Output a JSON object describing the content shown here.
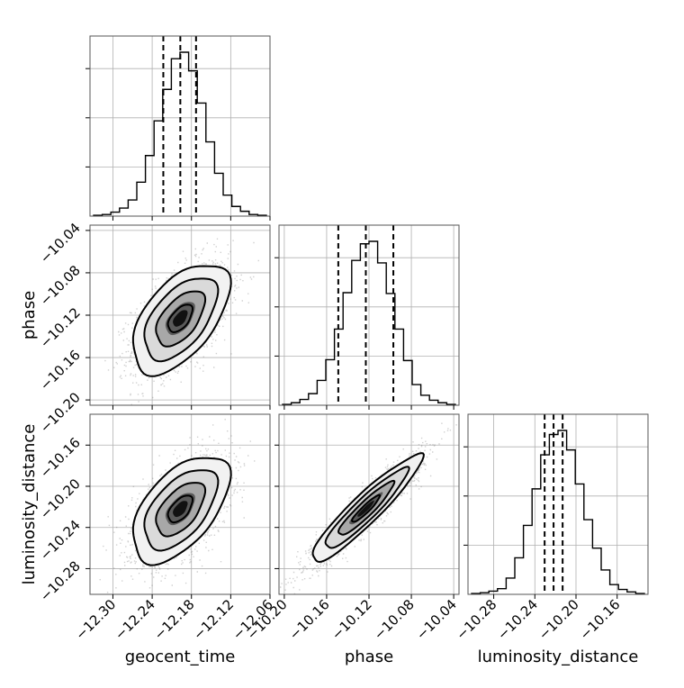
{
  "chart_data": {
    "type": "corner",
    "parameters": [
      "geocent_time",
      "phase",
      "luminosity_distance"
    ],
    "grid": true,
    "axes": {
      "geocent_time": {
        "label": "geocent_time",
        "range": [
          -12.335,
          -12.06
        ],
        "ticks": [
          -12.3,
          -12.24,
          -12.18,
          -12.12,
          -12.06
        ],
        "tick_labels": [
          "−12.30",
          "−12.24",
          "−12.18",
          "−12.12",
          "−12.06"
        ]
      },
      "phase": {
        "label": "phase",
        "range": [
          -10.205,
          -10.035
        ],
        "ticks": [
          -10.2,
          -10.16,
          -10.12,
          -10.08,
          -10.04
        ],
        "tick_labels": [
          "−10.20",
          "−10.16",
          "−10.12",
          "−10.08",
          "−10.04"
        ]
      },
      "luminosity_distance": {
        "label": "luminosity_distance",
        "range": [
          -10.305,
          -10.13
        ],
        "ticks": [
          -10.28,
          -10.24,
          -10.2,
          -10.16
        ],
        "tick_labels": [
          "−10.28",
          "−10.24",
          "−10.20",
          "−10.16"
        ]
      }
    },
    "y_axes": {
      "phase": {
        "ticks": [
          -10.2,
          -10.16,
          -10.12,
          -10.08,
          -10.04
        ],
        "tick_labels": [
          "−10.20",
          "−10.16",
          "−10.12",
          "−10.08",
          "−10.04"
        ]
      },
      "luminosity_distance": {
        "ticks": [
          -10.28,
          -10.24,
          -10.2,
          -10.16
        ],
        "tick_labels": [
          "−10.28",
          "−10.24",
          "−10.20",
          "−10.16"
        ]
      }
    },
    "histograms": [
      {
        "parameter": "geocent_time",
        "quantiles": [
          -12.223,
          -12.197,
          -12.173
        ],
        "counts": [
          1,
          2,
          5,
          10,
          20,
          42,
          75,
          118,
          157,
          195,
          203,
          180,
          140,
          92,
          53,
          26,
          12,
          6,
          2,
          1
        ]
      },
      {
        "parameter": "phase",
        "quantiles": [
          -10.149,
          -10.123,
          -10.097
        ],
        "counts": [
          1,
          3,
          7,
          14,
          30,
          55,
          92,
          136,
          175,
          195,
          198,
          172,
          135,
          92,
          54,
          25,
          12,
          6,
          3,
          1
        ]
      },
      {
        "parameter": "luminosity_distance",
        "quantiles": [
          -10.2305,
          -10.2218,
          -10.213
        ],
        "counts": [
          1,
          2,
          4,
          7,
          20,
          45,
          85,
          130,
          172,
          197,
          202,
          178,
          136,
          92,
          57,
          30,
          12,
          6,
          3,
          1
        ]
      }
    ],
    "joint": [
      {
        "x": "geocent_time",
        "y": "phase",
        "mean": [
          -12.197,
          -10.123
        ],
        "sd": [
          0.037,
          0.026
        ],
        "rho": 0.55
      },
      {
        "x": "geocent_time",
        "y": "luminosity_distance",
        "mean": [
          -12.197,
          -10.222
        ],
        "sd": [
          0.037,
          0.026
        ],
        "rho": 0.55
      },
      {
        "x": "phase",
        "y": "luminosity_distance",
        "mean": [
          -10.123,
          -10.222
        ],
        "sd": [
          0.026,
          0.026
        ],
        "rho": 0.93
      }
    ],
    "contour_levels_sigma": [
      0.5,
      1.0,
      1.5,
      2.0
    ]
  }
}
